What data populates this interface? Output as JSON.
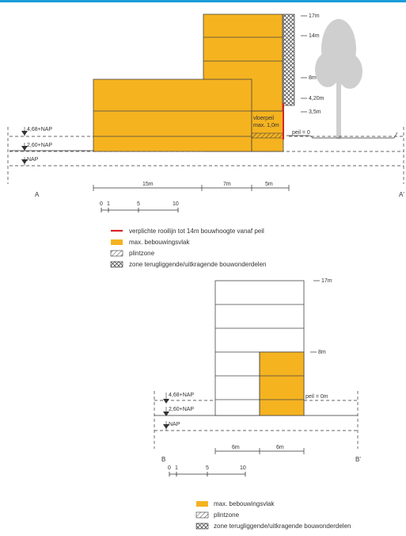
{
  "colors": {
    "accent_bar": "#1a9cd8",
    "building_fill": "#f5b320",
    "building_stroke": "#444444",
    "red_line": "#d9222a",
    "line": "#333333",
    "tree": "#cfcfcf"
  },
  "section1": {
    "heights": {
      "h17": "17m",
      "h14": "14m",
      "h8": "8m",
      "h420": "4,20m",
      "h35": "3,5m"
    },
    "vloerpeil_line1": "vloerpeil",
    "vloerpeil_line2": "max. 1,0m",
    "peil": "peil = 0",
    "levels": {
      "nap468": "4,68+NAP",
      "nap260": "2,60+NAP",
      "nap": "NAP"
    },
    "section_start": "A",
    "section_end": "A'",
    "dimensions": {
      "d1": "15m",
      "d2": "7m",
      "d3": "5m"
    },
    "scale": {
      "s0": "0",
      "s1": "1",
      "s5": "5",
      "s10": "10"
    }
  },
  "legend1": {
    "red_line": "verplichte rooilijn tot 14m bouwhoogte vanaf peil",
    "bebouwing": "max. bebouwingsvlak",
    "plint": "plintzone",
    "zone": "zone terugliggende/uitkragende bouwonderdelen"
  },
  "section2": {
    "heights": {
      "h17": "17m",
      "h8": "8m"
    },
    "peil": "peil = 0m",
    "levels": {
      "nap468": "4,68+NAP",
      "nap260": "2,60+NAP",
      "nap": "NAP"
    },
    "section_start": "B",
    "section_end": "B'",
    "dimensions": {
      "d1": "6m",
      "d2": "6m"
    },
    "scale": {
      "s0": "0",
      "s1": "1",
      "s5": "5",
      "s10": "10"
    }
  },
  "legend2": {
    "bebouwing": "max. bebouwingsvlak",
    "plint": "plintzone",
    "zone": "zone terugliggende/uitkragende bouwonderdelen"
  }
}
